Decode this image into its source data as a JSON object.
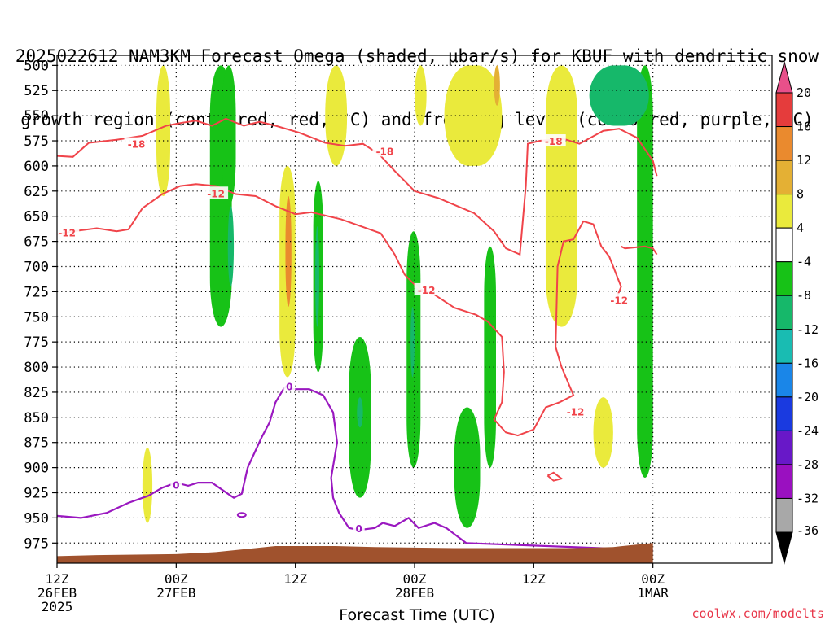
{
  "chart_data": {
    "type": "heatmap",
    "title_lines": [
      "2025022612 NAM3KM Forecast Omega (shaded, μbar/s) for KBUF with dendritic snow",
      "growth region (contoured, red, °C) and freezing level (contoured, purple, °C)"
    ],
    "xlabel": "Forecast Time (UTC)",
    "credit": "coolwx.com/modelts",
    "y_axis": {
      "ticks": [
        "500",
        "525",
        "550",
        "575",
        "600",
        "625",
        "650",
        "675",
        "700",
        "725",
        "750",
        "775",
        "800",
        "825",
        "850",
        "875",
        "900",
        "925",
        "950",
        "975"
      ],
      "range_mb": [
        490,
        995
      ],
      "direction": "pressure increasing downward"
    },
    "x_axis": {
      "range_hours": [
        0,
        36
      ],
      "ticks": [
        {
          "hour": 0,
          "line1": "12Z",
          "line2": "26FEB",
          "line3": "2025"
        },
        {
          "hour": 6,
          "line1": "00Z",
          "line2": "27FEB",
          "line3": ""
        },
        {
          "hour": 12,
          "line1": "12Z",
          "line2": "",
          "line3": ""
        },
        {
          "hour": 18,
          "line1": "00Z",
          "line2": "28FEB",
          "line3": ""
        },
        {
          "hour": 24,
          "line1": "12Z",
          "line2": "",
          "line3": ""
        },
        {
          "hour": 30,
          "line1": "00Z",
          "line2": "1MAR",
          "line3": ""
        }
      ],
      "grid": "dotted vertical every 6 h, dotted horizontal every 25 mb"
    },
    "colorbar": {
      "labels": [
        "20",
        "16",
        "12",
        "8",
        "4",
        "-4",
        "-8",
        "-12",
        "-16",
        "-20",
        "-24",
        "-28",
        "-32",
        "-36"
      ],
      "colors": [
        "#e8508a",
        "#e53c3c",
        "#ea8a2e",
        "#e4b034",
        "#eaea3c",
        "#ffffff",
        "#17c217",
        "#16b86a",
        "#19bcb2",
        "#1a86e8",
        "#1a3ae0",
        "#6818c8",
        "#9a10c0",
        "#a8a8a8",
        "#000000"
      ],
      "top_triangle_color": "#e8508a",
      "bottom_triangle_color": "#000000"
    },
    "omega_regions": [
      {
        "level": "-8",
        "color": "#17c217",
        "x": [
          7.7,
          8.8
        ],
        "p": [
          500,
          760
        ]
      },
      {
        "level": "-8",
        "color": "#17c217",
        "x": [
          8.3,
          9.0
        ],
        "p": [
          500,
          640
        ]
      },
      {
        "level": "-12",
        "color": "#16b86a",
        "x": [
          8.6,
          8.9
        ],
        "p": [
          640,
          720
        ]
      },
      {
        "level": "-8",
        "color": "#17c217",
        "x": [
          12.9,
          13.4
        ],
        "p": [
          615,
          805
        ]
      },
      {
        "level": "-12",
        "color": "#16b86a",
        "x": [
          13.0,
          13.2
        ],
        "p": [
          660,
          760
        ]
      },
      {
        "level": "-8",
        "color": "#17c217",
        "x": [
          14.7,
          15.8
        ],
        "p": [
          770,
          930
        ]
      },
      {
        "level": "-12",
        "color": "#16b86a",
        "x": [
          15.1,
          15.4
        ],
        "p": [
          830,
          860
        ]
      },
      {
        "level": "-8",
        "color": "#17c217",
        "x": [
          17.6,
          18.3
        ],
        "p": [
          665,
          900
        ]
      },
      {
        "level": "-12",
        "color": "#16b86a",
        "x": [
          17.8,
          18.0
        ],
        "p": [
          740,
          810
        ]
      },
      {
        "level": "-8",
        "color": "#17c217",
        "x": [
          20.0,
          21.3
        ],
        "p": [
          840,
          960
        ]
      },
      {
        "level": "-8",
        "color": "#17c217",
        "x": [
          21.5,
          22.1
        ],
        "p": [
          680,
          900
        ]
      },
      {
        "level": "-8",
        "color": "#17c217",
        "x": [
          29.2,
          30.0
        ],
        "p": [
          500,
          910
        ]
      },
      {
        "level": "-12",
        "color": "#16b86a",
        "x": [
          26.8,
          29.8
        ],
        "p": [
          500,
          560
        ]
      },
      {
        "level": "4",
        "color": "#eaea3c",
        "x": [
          5.0,
          5.7
        ],
        "p": [
          500,
          630
        ]
      },
      {
        "level": "4",
        "color": "#eaea3c",
        "x": [
          13.5,
          14.6
        ],
        "p": [
          500,
          600
        ]
      },
      {
        "level": "4",
        "color": "#eaea3c",
        "x": [
          18.0,
          18.6
        ],
        "p": [
          500,
          560
        ]
      },
      {
        "level": "4",
        "color": "#eaea3c",
        "x": [
          19.5,
          22.4
        ],
        "p": [
          500,
          600
        ]
      },
      {
        "level": "4",
        "color": "#eaea3c",
        "x": [
          24.6,
          26.2
        ],
        "p": [
          500,
          760
        ]
      },
      {
        "level": "4",
        "color": "#eaea3c",
        "x": [
          27.0,
          28.0
        ],
        "p": [
          830,
          900
        ]
      },
      {
        "level": "4",
        "color": "#eaea3c",
        "x": [
          11.2,
          12.0
        ],
        "p": [
          600,
          810
        ]
      },
      {
        "level": "8",
        "color": "#e4b034",
        "x": [
          22.0,
          22.3
        ],
        "p": [
          500,
          540
        ]
      },
      {
        "level": "12",
        "color": "#ea8a2e",
        "x": [
          11.5,
          11.8
        ],
        "p": [
          630,
          740
        ]
      },
      {
        "level": "4",
        "color": "#eaea3c",
        "x": [
          4.3,
          4.8
        ],
        "p": [
          880,
          955
        ]
      }
    ],
    "red_isotherms": [
      {
        "label": "-18",
        "label_at": [
          4.0,
          578
        ],
        "points": [
          [
            0,
            590
          ],
          [
            0.8,
            591
          ],
          [
            1.6,
            577
          ],
          [
            3.0,
            574
          ],
          [
            4.3,
            570
          ],
          [
            5.5,
            560
          ],
          [
            6.3,
            557
          ],
          [
            7.0,
            555
          ],
          [
            7.8,
            560
          ],
          [
            8.5,
            553
          ],
          [
            9.4,
            560
          ],
          [
            10.2,
            556
          ],
          [
            11.0,
            560
          ],
          [
            12.2,
            567
          ],
          [
            13.5,
            577
          ],
          [
            14.5,
            580
          ],
          [
            15.4,
            578
          ],
          [
            16.2,
            588
          ],
          [
            17.0,
            605
          ],
          [
            18.0,
            625
          ],
          [
            19.2,
            632
          ],
          [
            21.0,
            647
          ],
          [
            22.0,
            665
          ],
          [
            22.6,
            682
          ],
          [
            23.3,
            688
          ],
          [
            23.6,
            620
          ],
          [
            23.7,
            578
          ],
          [
            24.3,
            575
          ],
          [
            25.5,
            573
          ],
          [
            26.3,
            578
          ],
          [
            27.5,
            565
          ],
          [
            28.3,
            563
          ],
          [
            29.2,
            572
          ],
          [
            30.0,
            595
          ],
          [
            30.2,
            610
          ]
        ]
      },
      {
        "label": "-18",
        "label_at": [
          16.5,
          585
        ],
        "points": []
      },
      {
        "label": "-18",
        "label_at": [
          25.0,
          575
        ],
        "points": []
      },
      {
        "label": "-12",
        "label_at": [
          0.5,
          666
        ],
        "points": [
          [
            0,
            668
          ],
          [
            0.8,
            665
          ],
          [
            2.0,
            662
          ],
          [
            3.0,
            665
          ],
          [
            3.6,
            663
          ],
          [
            4.3,
            642
          ],
          [
            5.3,
            628
          ],
          [
            6.2,
            620
          ],
          [
            7.0,
            618
          ],
          [
            8.0,
            620
          ],
          [
            9.0,
            628
          ],
          [
            10.0,
            630
          ],
          [
            11.0,
            640
          ],
          [
            12.0,
            648
          ],
          [
            12.8,
            646
          ],
          [
            14.3,
            653
          ],
          [
            15.3,
            660
          ],
          [
            16.3,
            667
          ],
          [
            17.0,
            688
          ],
          [
            17.5,
            708
          ],
          [
            18.2,
            722
          ],
          [
            19.0,
            728
          ],
          [
            20.0,
            741
          ],
          [
            21.1,
            748
          ],
          [
            21.7,
            755
          ],
          [
            22.4,
            770
          ],
          [
            22.5,
            805
          ],
          [
            22.4,
            835
          ],
          [
            22.0,
            852
          ],
          [
            22.6,
            865
          ],
          [
            23.2,
            868
          ],
          [
            24.0,
            862
          ],
          [
            24.6,
            840
          ],
          [
            25.3,
            835
          ],
          [
            25.8,
            830
          ],
          [
            26.0,
            828
          ],
          [
            25.4,
            800
          ],
          [
            25.1,
            780
          ],
          [
            25.2,
            700
          ],
          [
            25.5,
            675
          ],
          [
            26.0,
            673
          ],
          [
            26.5,
            655
          ],
          [
            27.0,
            658
          ],
          [
            27.4,
            680
          ],
          [
            27.8,
            690
          ],
          [
            28.0,
            700
          ],
          [
            28.4,
            720
          ],
          [
            28.2,
            730
          ]
        ]
      },
      {
        "label": "-12",
        "label_at": [
          8.0,
          627
        ],
        "points": []
      },
      {
        "label": "-12",
        "label_at": [
          18.6,
          723
        ],
        "points": []
      },
      {
        "label": "-12",
        "label_at": [
          26.1,
          844
        ],
        "points": []
      },
      {
        "label": "-12",
        "label_at": [
          28.3,
          733
        ],
        "points": [
          [
            28.4,
            680
          ],
          [
            28.6,
            682
          ],
          [
            29.6,
            680
          ],
          [
            30.0,
            682
          ],
          [
            30.2,
            688
          ]
        ]
      },
      {
        "label": "",
        "label_at": null,
        "points": [
          [
            24.7,
            908
          ],
          [
            25.0,
            905
          ],
          [
            25.4,
            911
          ],
          [
            25.0,
            913
          ],
          [
            24.7,
            908
          ]
        ]
      }
    ],
    "purple_freezing_level": {
      "label": "0",
      "label_positions": [
        [
          6.0,
          917
        ],
        [
          11.7,
          819
        ],
        [
          15.2,
          960
        ]
      ],
      "points": [
        [
          0,
          948
        ],
        [
          1.2,
          950
        ],
        [
          2.5,
          945
        ],
        [
          3.6,
          935
        ],
        [
          4.6,
          928
        ],
        [
          5.3,
          920
        ],
        [
          6.0,
          915
        ],
        [
          6.6,
          918
        ],
        [
          7.1,
          915
        ],
        [
          7.8,
          915
        ],
        [
          8.6,
          926
        ],
        [
          8.9,
          930
        ],
        [
          9.3,
          926
        ],
        [
          9.6,
          900
        ],
        [
          10.3,
          870
        ],
        [
          10.7,
          855
        ],
        [
          11.0,
          835
        ],
        [
          11.4,
          822
        ],
        [
          11.6,
          818
        ],
        [
          11.9,
          822
        ],
        [
          12.7,
          822
        ],
        [
          13.4,
          828
        ],
        [
          13.9,
          845
        ],
        [
          14.1,
          875
        ],
        [
          13.8,
          910
        ],
        [
          13.9,
          930
        ],
        [
          14.2,
          945
        ],
        [
          14.7,
          960
        ],
        [
          15.2,
          962
        ],
        [
          16.0,
          960
        ],
        [
          16.4,
          955
        ],
        [
          17.0,
          958
        ],
        [
          17.7,
          950
        ],
        [
          18.2,
          960
        ],
        [
          19.0,
          955
        ],
        [
          19.6,
          960
        ],
        [
          20.6,
          975
        ],
        [
          30.0,
          982
        ]
      ]
    },
    "terrain": {
      "color": "#a0522d",
      "points": [
        [
          0,
          988
        ],
        [
          2,
          987
        ],
        [
          6,
          986
        ],
        [
          8,
          984
        ],
        [
          11,
          978
        ],
        [
          14,
          978
        ],
        [
          16,
          979
        ],
        [
          20,
          980
        ],
        [
          23,
          980
        ],
        [
          26,
          980
        ],
        [
          28,
          979
        ],
        [
          30,
          975
        ]
      ]
    }
  }
}
